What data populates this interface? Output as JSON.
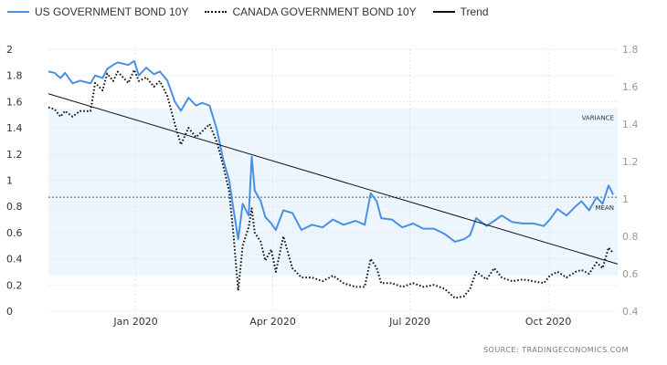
{
  "legend": {
    "us": "US GOVERNMENT BOND 10Y",
    "canada": "CANADA GOVERNMENT BOND 10Y",
    "trend": "Trend"
  },
  "source": "SOURCE:  TRADINGECONOMICS.COM",
  "bands": {
    "variance": "VARIANCE",
    "mean": "MEAN"
  },
  "colors": {
    "us": "#4a90e2",
    "canada": "#111111",
    "trend": "#111111",
    "band": "#eef6fd"
  },
  "chart_data": {
    "type": "line",
    "title": "",
    "x_ticks": [
      {
        "date": "2020-01-01",
        "label": "Jan 2020"
      },
      {
        "date": "2020-04-01",
        "label": "Apr 2020"
      },
      {
        "date": "2020-07-01",
        "label": "Jul 2020"
      },
      {
        "date": "2020-10-01",
        "label": "Oct 2020"
      }
    ],
    "x_range": [
      "2019-11-04",
      "2020-11-16"
    ],
    "y_left": {
      "range": [
        0,
        2
      ],
      "ticks": [
        "0",
        "0.2",
        "0.4",
        "0.6",
        "0.8",
        "1",
        "1.2",
        "1.4",
        "1.6",
        "1.8",
        "2"
      ]
    },
    "y_right": {
      "range": [
        0.4,
        1.8
      ],
      "ticks": [
        "0.4",
        "0.6",
        "0.8",
        "1",
        "1.2",
        "1.4",
        "1.6",
        "1.8"
      ]
    },
    "mean_value": 0.87,
    "variance_band": [
      0.27,
      1.55
    ],
    "trend": {
      "start": [
        "2019-11-04",
        1.66
      ],
      "end": [
        "2020-11-16",
        0.36
      ]
    },
    "series": [
      {
        "name": "US GOVERNMENT BOND 10Y",
        "axis": "left",
        "style": "solid",
        "points": [
          [
            "2019-11-04",
            1.83
          ],
          [
            "2019-11-08",
            1.82
          ],
          [
            "2019-11-12",
            1.78
          ],
          [
            "2019-11-15",
            1.82
          ],
          [
            "2019-11-20",
            1.74
          ],
          [
            "2019-11-25",
            1.76
          ],
          [
            "2019-12-02",
            1.74
          ],
          [
            "2019-12-05",
            1.8
          ],
          [
            "2019-12-10",
            1.78
          ],
          [
            "2019-12-13",
            1.85
          ],
          [
            "2019-12-17",
            1.88
          ],
          [
            "2019-12-20",
            1.9
          ],
          [
            "2019-12-27",
            1.88
          ],
          [
            "2019-12-31",
            1.91
          ],
          [
            "2020-01-03",
            1.8
          ],
          [
            "2020-01-08",
            1.86
          ],
          [
            "2020-01-13",
            1.81
          ],
          [
            "2020-01-17",
            1.83
          ],
          [
            "2020-01-22",
            1.76
          ],
          [
            "2020-01-27",
            1.6
          ],
          [
            "2020-01-31",
            1.53
          ],
          [
            "2020-02-05",
            1.63
          ],
          [
            "2020-02-10",
            1.57
          ],
          [
            "2020-02-14",
            1.59
          ],
          [
            "2020-02-19",
            1.57
          ],
          [
            "2020-02-24",
            1.38
          ],
          [
            "2020-02-28",
            1.16
          ],
          [
            "2020-03-03",
            1.0
          ],
          [
            "2020-03-06",
            0.77
          ],
          [
            "2020-03-09",
            0.55
          ],
          [
            "2020-03-12",
            0.82
          ],
          [
            "2020-03-16",
            0.73
          ],
          [
            "2020-03-18",
            1.18
          ],
          [
            "2020-03-20",
            0.92
          ],
          [
            "2020-03-24",
            0.84
          ],
          [
            "2020-03-27",
            0.72
          ],
          [
            "2020-03-31",
            0.67
          ],
          [
            "2020-04-03",
            0.62
          ],
          [
            "2020-04-08",
            0.77
          ],
          [
            "2020-04-14",
            0.75
          ],
          [
            "2020-04-20",
            0.62
          ],
          [
            "2020-04-27",
            0.66
          ],
          [
            "2020-05-04",
            0.64
          ],
          [
            "2020-05-11",
            0.7
          ],
          [
            "2020-05-18",
            0.66
          ],
          [
            "2020-05-26",
            0.69
          ],
          [
            "2020-06-01",
            0.66
          ],
          [
            "2020-06-05",
            0.9
          ],
          [
            "2020-06-09",
            0.84
          ],
          [
            "2020-06-12",
            0.71
          ],
          [
            "2020-06-19",
            0.7
          ],
          [
            "2020-06-26",
            0.64
          ],
          [
            "2020-07-03",
            0.67
          ],
          [
            "2020-07-10",
            0.63
          ],
          [
            "2020-07-17",
            0.63
          ],
          [
            "2020-07-24",
            0.59
          ],
          [
            "2020-07-31",
            0.53
          ],
          [
            "2020-08-06",
            0.55
          ],
          [
            "2020-08-10",
            0.58
          ],
          [
            "2020-08-14",
            0.71
          ],
          [
            "2020-08-21",
            0.65
          ],
          [
            "2020-08-26",
            0.69
          ],
          [
            "2020-08-31",
            0.73
          ],
          [
            "2020-09-07",
            0.68
          ],
          [
            "2020-09-14",
            0.67
          ],
          [
            "2020-09-21",
            0.67
          ],
          [
            "2020-09-28",
            0.65
          ],
          [
            "2020-10-02",
            0.7
          ],
          [
            "2020-10-07",
            0.78
          ],
          [
            "2020-10-13",
            0.73
          ],
          [
            "2020-10-19",
            0.8
          ],
          [
            "2020-10-23",
            0.84
          ],
          [
            "2020-10-28",
            0.77
          ],
          [
            "2020-11-02",
            0.87
          ],
          [
            "2020-11-06",
            0.82
          ],
          [
            "2020-11-10",
            0.96
          ],
          [
            "2020-11-13",
            0.89
          ]
        ]
      },
      {
        "name": "CANADA GOVERNMENT BOND 10Y",
        "axis": "right",
        "style": "dotted",
        "points": [
          [
            "2019-11-04",
            1.49
          ],
          [
            "2019-11-08",
            1.48
          ],
          [
            "2019-11-12",
            1.44
          ],
          [
            "2019-11-15",
            1.47
          ],
          [
            "2019-11-20",
            1.44
          ],
          [
            "2019-11-25",
            1.47
          ],
          [
            "2019-12-02",
            1.47
          ],
          [
            "2019-12-05",
            1.62
          ],
          [
            "2019-12-10",
            1.58
          ],
          [
            "2019-12-13",
            1.67
          ],
          [
            "2019-12-17",
            1.63
          ],
          [
            "2019-12-20",
            1.68
          ],
          [
            "2019-12-27",
            1.62
          ],
          [
            "2019-12-31",
            1.69
          ],
          [
            "2020-01-03",
            1.63
          ],
          [
            "2020-01-08",
            1.65
          ],
          [
            "2020-01-13",
            1.6
          ],
          [
            "2020-01-17",
            1.63
          ],
          [
            "2020-01-22",
            1.55
          ],
          [
            "2020-01-27",
            1.4
          ],
          [
            "2020-01-31",
            1.29
          ],
          [
            "2020-02-05",
            1.38
          ],
          [
            "2020-02-10",
            1.33
          ],
          [
            "2020-02-14",
            1.36
          ],
          [
            "2020-02-19",
            1.4
          ],
          [
            "2020-02-24",
            1.3
          ],
          [
            "2020-02-28",
            1.18
          ],
          [
            "2020-03-03",
            1.04
          ],
          [
            "2020-03-06",
            0.8
          ],
          [
            "2020-03-09",
            0.51
          ],
          [
            "2020-03-12",
            0.75
          ],
          [
            "2020-03-16",
            0.85
          ],
          [
            "2020-03-18",
            0.95
          ],
          [
            "2020-03-20",
            0.82
          ],
          [
            "2020-03-24",
            0.77
          ],
          [
            "2020-03-27",
            0.67
          ],
          [
            "2020-03-31",
            0.73
          ],
          [
            "2020-04-03",
            0.61
          ],
          [
            "2020-04-08",
            0.8
          ],
          [
            "2020-04-14",
            0.63
          ],
          [
            "2020-04-20",
            0.58
          ],
          [
            "2020-04-27",
            0.58
          ],
          [
            "2020-05-04",
            0.56
          ],
          [
            "2020-05-11",
            0.59
          ],
          [
            "2020-05-18",
            0.55
          ],
          [
            "2020-05-26",
            0.53
          ],
          [
            "2020-06-01",
            0.53
          ],
          [
            "2020-06-05",
            0.68
          ],
          [
            "2020-06-09",
            0.63
          ],
          [
            "2020-06-12",
            0.55
          ],
          [
            "2020-06-19",
            0.55
          ],
          [
            "2020-06-26",
            0.53
          ],
          [
            "2020-07-03",
            0.55
          ],
          [
            "2020-07-10",
            0.53
          ],
          [
            "2020-07-17",
            0.54
          ],
          [
            "2020-07-24",
            0.52
          ],
          [
            "2020-07-31",
            0.47
          ],
          [
            "2020-08-06",
            0.48
          ],
          [
            "2020-08-10",
            0.52
          ],
          [
            "2020-08-14",
            0.61
          ],
          [
            "2020-08-21",
            0.57
          ],
          [
            "2020-08-26",
            0.63
          ],
          [
            "2020-08-31",
            0.58
          ],
          [
            "2020-09-07",
            0.56
          ],
          [
            "2020-09-14",
            0.57
          ],
          [
            "2020-09-21",
            0.56
          ],
          [
            "2020-09-28",
            0.55
          ],
          [
            "2020-10-02",
            0.59
          ],
          [
            "2020-10-07",
            0.61
          ],
          [
            "2020-10-13",
            0.58
          ],
          [
            "2020-10-19",
            0.61
          ],
          [
            "2020-10-23",
            0.62
          ],
          [
            "2020-10-28",
            0.6
          ],
          [
            "2020-11-02",
            0.66
          ],
          [
            "2020-11-06",
            0.63
          ],
          [
            "2020-11-10",
            0.74
          ],
          [
            "2020-11-13",
            0.71
          ]
        ]
      }
    ]
  }
}
